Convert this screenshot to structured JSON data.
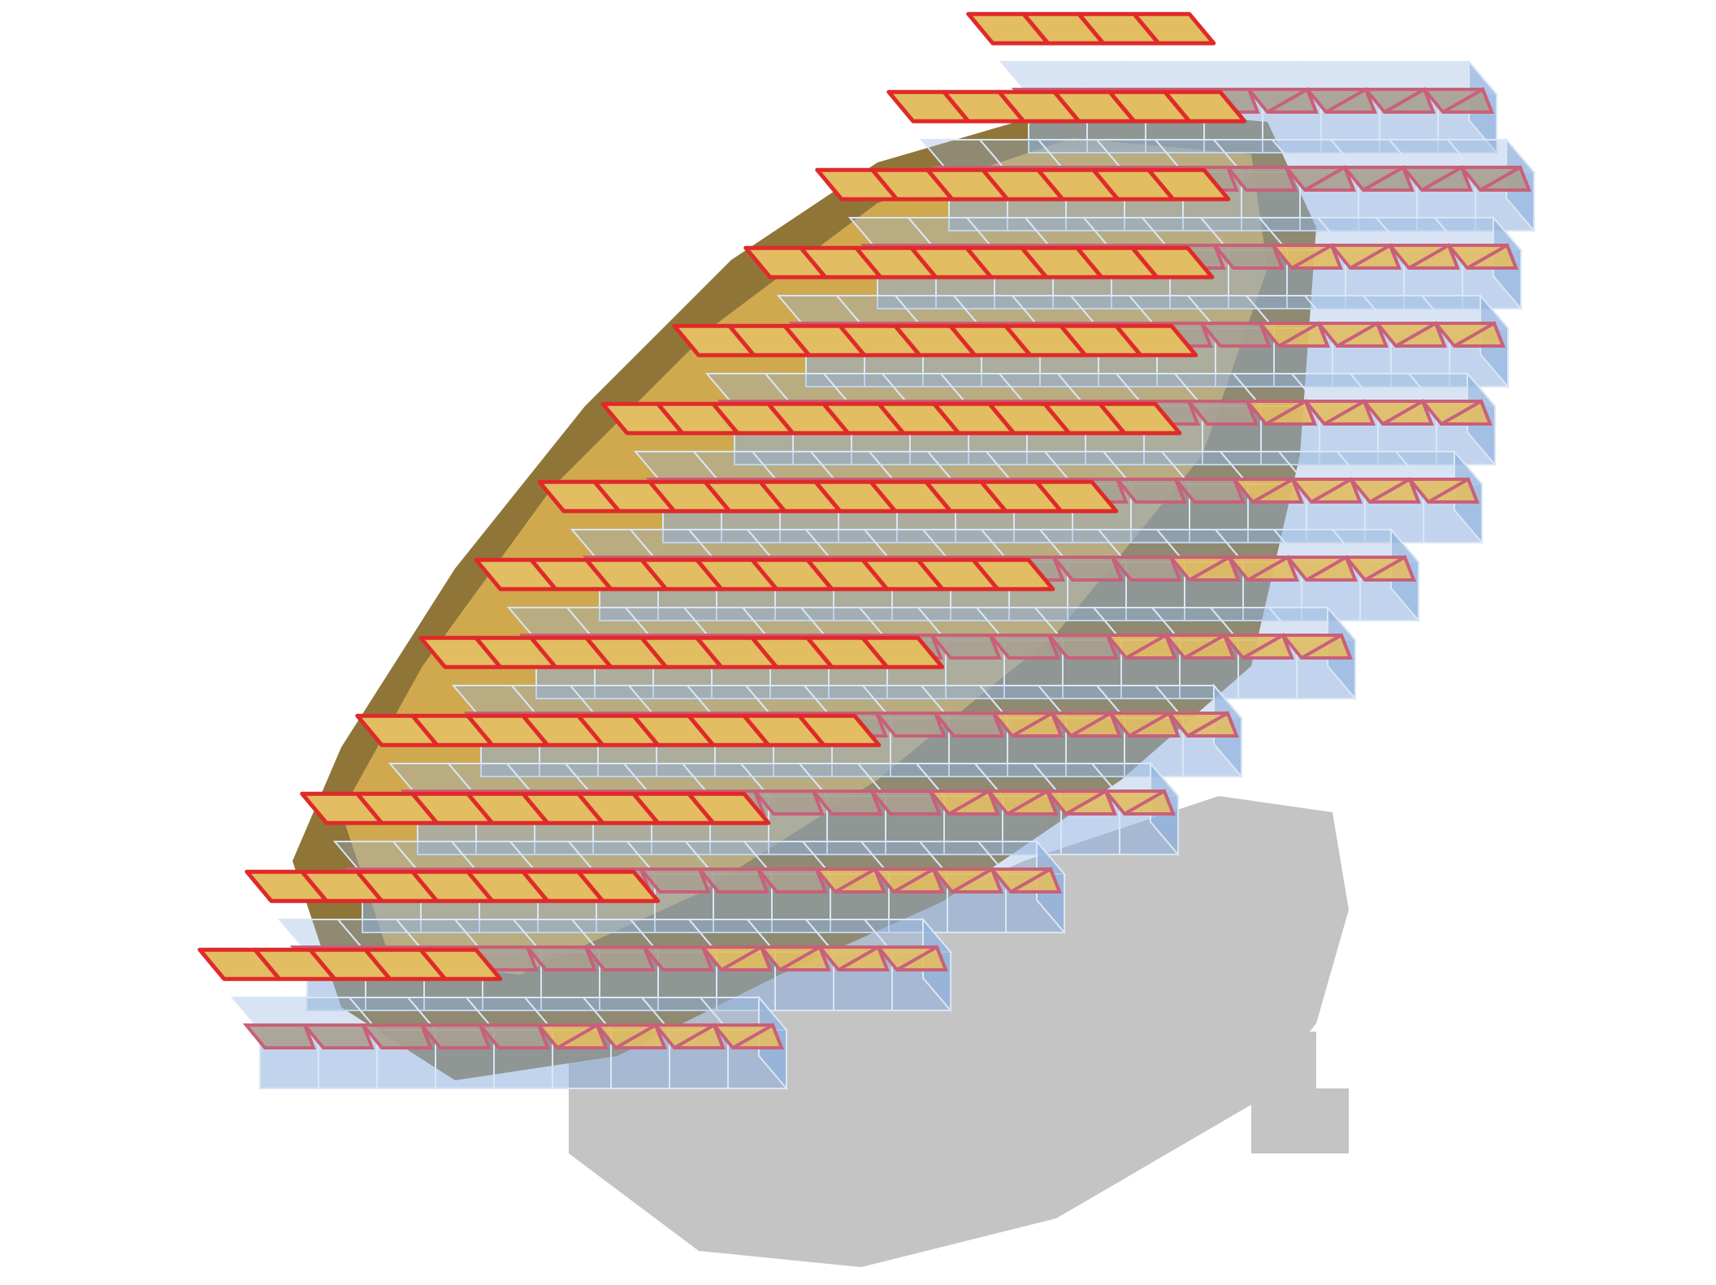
{
  "figure": {
    "kind": "3d-voxel-mesh-render",
    "title": "",
    "description_visible_text": []
  },
  "colors": {
    "background": "#ffffff",
    "shadow": "#c4c4c4",
    "surface_top": "#e2bd62",
    "surface_mid": "#d0a94f",
    "surface_dark": "#8f7638",
    "voxel_face": "#8fb1de",
    "voxel_edge": "#d9e6f4",
    "mesh_edge": "#e02a2a",
    "mesh_edge_faded": "#c9607a",
    "grey_face": "#a8a090"
  },
  "structure": {
    "rows": 13,
    "row_lengths": [
      9,
      11,
      12,
      13,
      13,
      14,
      14,
      14,
      13,
      12,
      11,
      10,
      8
    ]
  }
}
